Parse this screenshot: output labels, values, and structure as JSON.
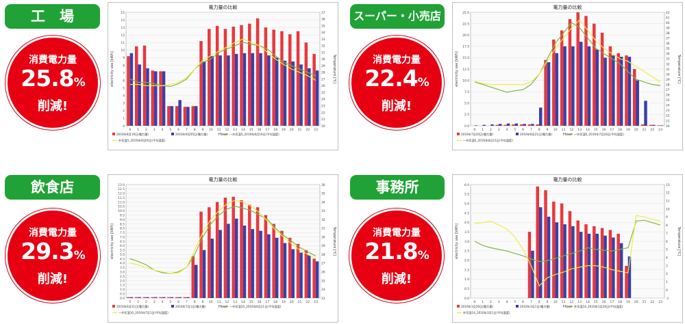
{
  "panels": [
    {
      "name": "工　場",
      "label": "消費電力量",
      "pct": "25.8",
      "unit": "%",
      "cut": "削減!"
    },
    {
      "name": "スーパー・小売店",
      "label": "消費電力量",
      "pct": "22.4",
      "unit": "%",
      "cut": "削減!"
    },
    {
      "name": "飲食店",
      "label": "消費電力量",
      "pct": "29.3",
      "unit": "%",
      "cut": "削減!"
    },
    {
      "name": "事務所",
      "label": "消費電力量",
      "pct": "21.8",
      "unit": "%",
      "cut": "削減!"
    }
  ],
  "colors": {
    "before": "#e8383d",
    "after": "#3a3fa7",
    "temp_before": "#7ab648",
    "temp_after": "#f2e84a",
    "badge": "#21a236",
    "circle": "#e60012"
  },
  "chart_data": [
    {
      "type": "bar",
      "title": "電力量の比較",
      "xlabel": "Hour",
      "ylabel": "electricity use [kWh]",
      "y2label": "Temperature [℃]",
      "categories": [
        "0",
        "1",
        "2",
        "3",
        "4",
        "5",
        "6",
        "7",
        "8",
        "9",
        "10",
        "11",
        "12",
        "13",
        "14",
        "15",
        "16",
        "17",
        "18",
        "19",
        "20",
        "21",
        "22",
        "23"
      ],
      "ylim": [
        0,
        15
      ],
      "yticks": [
        "0",
        "1",
        "2",
        "3",
        "4",
        "5",
        "6",
        "7",
        "8",
        "9",
        "10",
        "11",
        "12",
        "13",
        "14",
        "15"
      ],
      "y2lim": [
        20,
        37
      ],
      "y2ticks": [
        "20",
        "21",
        "22",
        "23",
        "24",
        "25",
        "26",
        "27",
        "28",
        "29",
        "30",
        "31",
        "32",
        "33",
        "34",
        "35",
        "36",
        "37"
      ],
      "series": [
        {
          "kind": "bar",
          "values": [
            9.2,
            10.5,
            10.6,
            7.3,
            7.2,
            2.6,
            2.6,
            2.5,
            2.6,
            11.2,
            12.8,
            13.2,
            12.8,
            13.1,
            13.3,
            13.5,
            14.2,
            13.0,
            12.7,
            12.5,
            12.1,
            12.5,
            11.0,
            9.5
          ]
        },
        {
          "kind": "bar",
          "values": [
            9.6,
            8.1,
            7.6,
            7.2,
            7.2,
            2.6,
            3.4,
            2.5,
            2.6,
            8.5,
            9.2,
            9.3,
            9.3,
            9.5,
            9.6,
            9.6,
            9.6,
            9.3,
            9.0,
            8.6,
            8.5,
            8.1,
            7.6,
            7.3
          ]
        },
        {
          "kind": "line",
          "axis": "y2",
          "values": [
            27.0,
            26.5,
            26.5,
            26.3,
            26.0,
            25.9,
            26.3,
            27.0,
            28.5,
            29.5,
            30.0,
            31.0,
            31.5,
            32.0,
            32.5,
            32.2,
            32.0,
            31.5,
            30.5,
            29.5,
            29.0,
            28.5,
            28.0,
            27.5
          ]
        },
        {
          "kind": "line",
          "axis": "y2",
          "values": [
            26.2,
            26.2,
            26.0,
            26.0,
            26.0,
            26.2,
            26.5,
            27.2,
            28.5,
            29.8,
            30.5,
            31.2,
            31.8,
            32.5,
            33.0,
            32.5,
            32.0,
            31.0,
            30.0,
            29.2,
            28.5,
            28.0,
            27.5,
            26.8
          ]
        }
      ],
      "legend": [
        "2016年8月19日(電力量)",
        "2016年9月05日(電力量)",
        "一外気温5_2016年8月19日(平均温度)",
        "外気温5_2016年9月05日(平均温度)"
      ]
    },
    {
      "type": "bar",
      "title": "電力量の比較",
      "xlabel": "Hour",
      "ylabel": "electricity use [kWh]",
      "y2label": "Temperature [℃]",
      "categories": [
        "0",
        "1",
        "2",
        "3",
        "4",
        "5",
        "6",
        "7",
        "8",
        "9",
        "10",
        "11",
        "12",
        "13",
        "14",
        "15",
        "16",
        "17",
        "18",
        "19",
        "20",
        "21",
        "22",
        "23"
      ],
      "ylim": [
        0,
        25
      ],
      "yticks": [
        "0.0",
        "2.5",
        "5.0",
        "7.5",
        "10.0",
        "12.5",
        "15.0",
        "17.5",
        "20.0",
        "22.5",
        "25.0"
      ],
      "y2lim": [
        20,
        42
      ],
      "y2ticks": [
        "20",
        "21",
        "22",
        "23",
        "24",
        "25",
        "26",
        "27",
        "28",
        "29",
        "30",
        "31",
        "32",
        "33",
        "34",
        "35",
        "36",
        "37",
        "38",
        "39",
        "40",
        "41",
        "42"
      ],
      "series": [
        {
          "kind": "bar",
          "values": [
            0,
            0,
            0,
            0.2,
            0.2,
            0.3,
            0.3,
            0.3,
            0.3,
            14.5,
            19.0,
            21.0,
            23.5,
            25.0,
            24.2,
            22.5,
            20.5,
            17.5,
            16.0,
            15.5,
            12.5,
            0.3,
            0.2,
            0.1
          ]
        },
        {
          "kind": "bar",
          "values": [
            0.1,
            0.2,
            0.3,
            0.4,
            0.5,
            0.5,
            0.4,
            0.4,
            4.0,
            14.0,
            16.0,
            17.5,
            17.5,
            18.5,
            17.5,
            16.8,
            15.0,
            15.5,
            15.2,
            15.2,
            10.0,
            5.5,
            0.2,
            0.1
          ]
        },
        {
          "kind": "line",
          "axis": "y2",
          "values": [
            28.5,
            28.0,
            27.5,
            27.0,
            26.5,
            26.8,
            27.0,
            28.0,
            30.0,
            33.0,
            36.0,
            38.0,
            40.0,
            39.0,
            37.0,
            35.0,
            34.0,
            33.0,
            32.0,
            30.5,
            29.0,
            28.5,
            28.0,
            27.8
          ]
        },
        {
          "kind": "line",
          "axis": "y2",
          "values": [
            28.6,
            28.2,
            28.0,
            28.0,
            28.0,
            28.0,
            28.0,
            28.5,
            30.0,
            32.5,
            35.0,
            37.0,
            39.0,
            40.5,
            38.5,
            36.5,
            35.0,
            34.0,
            33.0,
            32.5,
            31.5,
            30.5,
            29.5,
            28.5
          ]
        }
      ],
      "legend": [
        "2016年7月20日(電力量)",
        "2016年8月21日(電力量)",
        "一外気温5_2016年7月20日(平均温度)",
        "一外気温5_2016年8月21日(平均温度)"
      ]
    },
    {
      "type": "bar",
      "title": "電力量の比較",
      "xlabel": "Hour",
      "ylabel": "electricity use [kWh]",
      "y2label": "Temperature [℃]",
      "categories": [
        "0",
        "1",
        "2",
        "3",
        "4",
        "5",
        "6",
        "7",
        "8",
        "9",
        "10",
        "11",
        "12",
        "13",
        "14",
        "15",
        "16",
        "17",
        "18",
        "19",
        "20",
        "21",
        "22",
        "23"
      ],
      "ylim": [
        0,
        13
      ],
      "yticks": [
        "0.0",
        "0.5",
        "1.0",
        "1.5",
        "2.0",
        "2.5",
        "3.0",
        "3.5",
        "4.0",
        "4.5",
        "5.0",
        "5.5",
        "6.0",
        "6.5",
        "7.0",
        "7.5",
        "8.0",
        "8.5",
        "9.0",
        "9.5",
        "10.0",
        "10.5",
        "11.0",
        "11.5",
        "12.0",
        "12.5",
        "13.0"
      ],
      "y2lim": [
        23,
        36
      ],
      "y2ticks": [
        "23",
        "24",
        "25",
        "26",
        "27",
        "28",
        "29",
        "30",
        "31",
        "32",
        "33",
        "34",
        "35",
        "36"
      ],
      "series": [
        {
          "kind": "bar",
          "values": [
            0.1,
            0.1,
            0.1,
            0.1,
            0.1,
            0.1,
            0.1,
            0.1,
            4.8,
            9.9,
            10.4,
            11.0,
            11.5,
            11.6,
            11.2,
            10.7,
            10.4,
            9.5,
            8.5,
            7.7,
            6.9,
            6.2,
            5.5,
            4.5
          ]
        },
        {
          "kind": "bar",
          "values": [
            0.1,
            0.1,
            0.1,
            0.1,
            0.1,
            0.1,
            0.1,
            0.1,
            3.8,
            5.5,
            6.8,
            7.8,
            8.5,
            9.1,
            8.3,
            7.9,
            7.7,
            7.3,
            6.9,
            6.3,
            5.6,
            5.2,
            4.9,
            4.2
          ]
        },
        {
          "kind": "line",
          "axis": "y2",
          "values": [
            27.5,
            27.2,
            26.8,
            26.2,
            25.9,
            25.8,
            26.0,
            26.5,
            28.0,
            30.0,
            31.5,
            32.5,
            33.2,
            33.5,
            33.3,
            33.0,
            32.5,
            32.0,
            31.0,
            30.2,
            29.5,
            28.8,
            28.3,
            27.8
          ]
        },
        {
          "kind": "line",
          "axis": "y2",
          "values": [
            27.0,
            26.8,
            26.5,
            26.2,
            26.0,
            25.8,
            25.9,
            26.5,
            28.5,
            30.5,
            32.0,
            33.0,
            33.8,
            34.2,
            34.0,
            33.5,
            32.8,
            31.8,
            30.8,
            30.0,
            29.2,
            28.5,
            28.0,
            27.5
          ]
        }
      ],
      "legend": [
        "2016年6月21日(電力量)",
        "2016年7月1日(電力量)",
        "一外気温10_2016年6月21日(平均温度)",
        "一外気温10_2016年7月1日(平均温度)"
      ]
    },
    {
      "type": "bar",
      "title": "電力量の比較",
      "xlabel": "Hour",
      "ylabel": "electricity use [kWh]",
      "y2label": "Temperature [℃]",
      "categories": [
        "0",
        "1",
        "2",
        "3",
        "4",
        "5",
        "6",
        "7",
        "8",
        "9",
        "10",
        "11",
        "12",
        "13",
        "14",
        "15",
        "16",
        "17",
        "18",
        "19",
        "20",
        "21",
        "22",
        "23"
      ],
      "ylim": [
        0,
        6
      ],
      "yticks": [
        "0.0",
        "0.5",
        "1.0",
        "1.5",
        "2.0",
        "2.5",
        "3.0",
        "3.5",
        "4.0",
        "4.5",
        "5.0",
        "5.5",
        "6.0"
      ],
      "y2lim": [
        -1,
        13
      ],
      "y2ticks": [
        "-1",
        "0",
        "1",
        "2",
        "3",
        "4",
        "5",
        "6",
        "7",
        "8",
        "9",
        "10",
        "11",
        "12",
        "13"
      ],
      "series": [
        {
          "kind": "bar",
          "values": [
            0,
            0,
            0,
            0,
            0,
            0,
            0,
            3.5,
            5.9,
            5.7,
            5.1,
            5.0,
            4.6,
            4.1,
            3.9,
            3.8,
            3.7,
            3.6,
            3.4,
            1.7,
            0,
            0,
            0,
            0
          ]
        },
        {
          "kind": "bar",
          "values": [
            0,
            0,
            0,
            0,
            0,
            0,
            0,
            2.5,
            4.8,
            4.3,
            4.0,
            3.9,
            3.8,
            3.5,
            3.4,
            3.4,
            3.3,
            3.2,
            2.9,
            2.2,
            0,
            0,
            0,
            0
          ]
        },
        {
          "kind": "line",
          "axis": "y2",
          "values": [
            6.0,
            5.5,
            5.2,
            5.0,
            4.8,
            4.5,
            4.2,
            3.8,
            3.5,
            3.6,
            3.9,
            4.2,
            4.5,
            4.8,
            5.2,
            5.0,
            4.9,
            4.8,
            5.0,
            5.2,
            8.5,
            8.6,
            8.3,
            8.0
          ]
        },
        {
          "kind": "line",
          "axis": "y2",
          "values": [
            8.2,
            8.3,
            8.5,
            8.0,
            7.5,
            6.5,
            5.0,
            3.0,
            0.5,
            1.5,
            1.9,
            2.2,
            2.6,
            2.8,
            3.0,
            3.0,
            2.8,
            2.5,
            2.3,
            2.1,
            9.2,
            9.0,
            8.7,
            8.5
          ]
        }
      ],
      "legend": [
        "2016年1月26日(電力量)",
        "2016年3月1日(電力量)",
        "外気温14_2016年1月26日(平均温度)",
        "外気温14_2016年3月1日(平均温度)"
      ]
    }
  ]
}
